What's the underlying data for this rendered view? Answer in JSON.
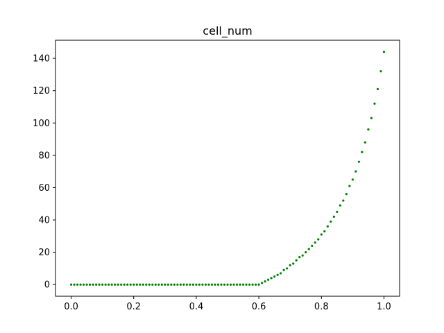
{
  "chart_data": {
    "type": "scatter",
    "title": "cell_num",
    "xlabel": "",
    "ylabel": "",
    "xlim": [
      -0.05,
      1.05
    ],
    "ylim": [
      -7.2,
      151.2
    ],
    "x_ticks": [
      0.0,
      0.2,
      0.4,
      0.6,
      0.8,
      1.0
    ],
    "x_tick_labels": [
      "0.0",
      "0.2",
      "0.4",
      "0.6",
      "0.8",
      "1.0"
    ],
    "y_ticks": [
      0,
      20,
      40,
      60,
      80,
      100,
      120,
      140
    ],
    "y_tick_labels": [
      "0",
      "20",
      "40",
      "60",
      "80",
      "100",
      "120",
      "140"
    ],
    "grid": false,
    "marker_color": "#008000",
    "series": [
      {
        "x": [
          0.0,
          0.01,
          0.02,
          0.03,
          0.04,
          0.05,
          0.06,
          0.07,
          0.08,
          0.09,
          0.1,
          0.11,
          0.12,
          0.13,
          0.14,
          0.15,
          0.16,
          0.17,
          0.18,
          0.19,
          0.2,
          0.21,
          0.22,
          0.23,
          0.24,
          0.25,
          0.26,
          0.27,
          0.28,
          0.29,
          0.3,
          0.31,
          0.32,
          0.33,
          0.34,
          0.35,
          0.36,
          0.37,
          0.38,
          0.39,
          0.4,
          0.41,
          0.42,
          0.43,
          0.44,
          0.45,
          0.46,
          0.47,
          0.48,
          0.49,
          0.5,
          0.51,
          0.52,
          0.53,
          0.54,
          0.55,
          0.56,
          0.57,
          0.58,
          0.59,
          0.6,
          0.61,
          0.62,
          0.63,
          0.64,
          0.65,
          0.66,
          0.67,
          0.68,
          0.69,
          0.7,
          0.71,
          0.72,
          0.73,
          0.74,
          0.75,
          0.76,
          0.77,
          0.78,
          0.79,
          0.8,
          0.81,
          0.82,
          0.83,
          0.84,
          0.85,
          0.86,
          0.87,
          0.88,
          0.89,
          0.9,
          0.91,
          0.92,
          0.93,
          0.94,
          0.95,
          0.96,
          0.97,
          0.98,
          0.99,
          1.0
        ],
        "y": [
          0,
          0,
          0,
          0,
          0,
          0,
          0,
          0,
          0,
          0,
          0,
          0,
          0,
          0,
          0,
          0,
          0,
          0,
          0,
          0,
          0,
          0,
          0,
          0,
          0,
          0,
          0,
          0,
          0,
          0,
          0,
          0,
          0,
          0,
          0,
          0,
          0,
          0,
          0,
          0,
          0,
          0,
          0,
          0,
          0,
          0,
          0,
          0,
          0,
          0,
          0,
          0,
          0,
          0,
          0,
          0,
          0,
          0,
          0,
          0,
          0,
          1,
          2,
          3,
          4,
          5,
          6,
          7,
          9,
          10,
          12,
          13,
          15,
          17,
          18,
          20,
          22,
          24,
          26,
          28,
          31,
          33,
          36,
          39,
          42,
          45,
          49,
          52,
          56,
          61,
          65,
          70,
          76,
          82,
          88,
          96,
          103,
          112,
          121,
          132,
          144
        ]
      }
    ]
  }
}
